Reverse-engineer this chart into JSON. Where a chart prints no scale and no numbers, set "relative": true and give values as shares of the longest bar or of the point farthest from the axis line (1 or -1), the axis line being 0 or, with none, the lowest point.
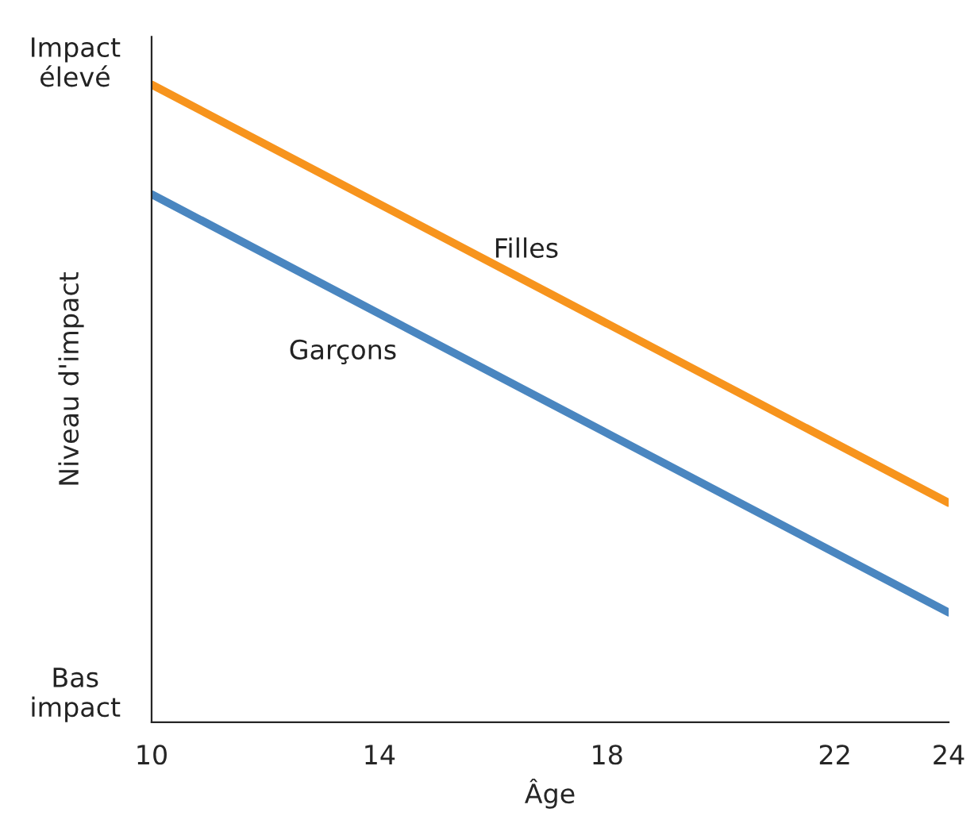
{
  "chart_data": {
    "type": "line",
    "xlabel": "Âge",
    "ylabel": "Niveau d'impact",
    "x": [
      10,
      24
    ],
    "xlim": [
      10,
      24
    ],
    "xticks": [
      10,
      14,
      18,
      22,
      24
    ],
    "relative": true,
    "annotations": [
      "Impact\nélevé",
      "Bas\nimpact"
    ],
    "grid": false,
    "legend": false,
    "marker": "none",
    "line_style": "solid",
    "series": [
      {
        "name": "Filles",
        "color": "#f7941d",
        "values": [
          1,
          0.344
        ]
      },
      {
        "name": "Garçons",
        "color": "#4a86c0",
        "values": [
          0.828,
          0.172
        ]
      }
    ]
  }
}
